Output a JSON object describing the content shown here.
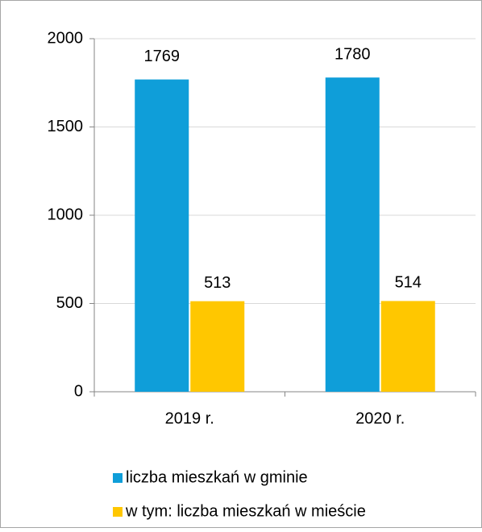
{
  "chart_data": {
    "type": "bar",
    "categories": [
      "2019 r.",
      "2020 r."
    ],
    "series": [
      {
        "name": "liczba mieszkań w gminie",
        "color": "#0f9ed9",
        "values": [
          1769,
          1780
        ]
      },
      {
        "name": "w tym: liczba mieszkań w mieście",
        "color": "#ffc700",
        "values": [
          513,
          514
        ]
      }
    ],
    "ylim": [
      0,
      2000
    ],
    "yticks": [
      0,
      500,
      1000,
      1500,
      2000
    ],
    "grid": true,
    "legend": "bottom"
  }
}
